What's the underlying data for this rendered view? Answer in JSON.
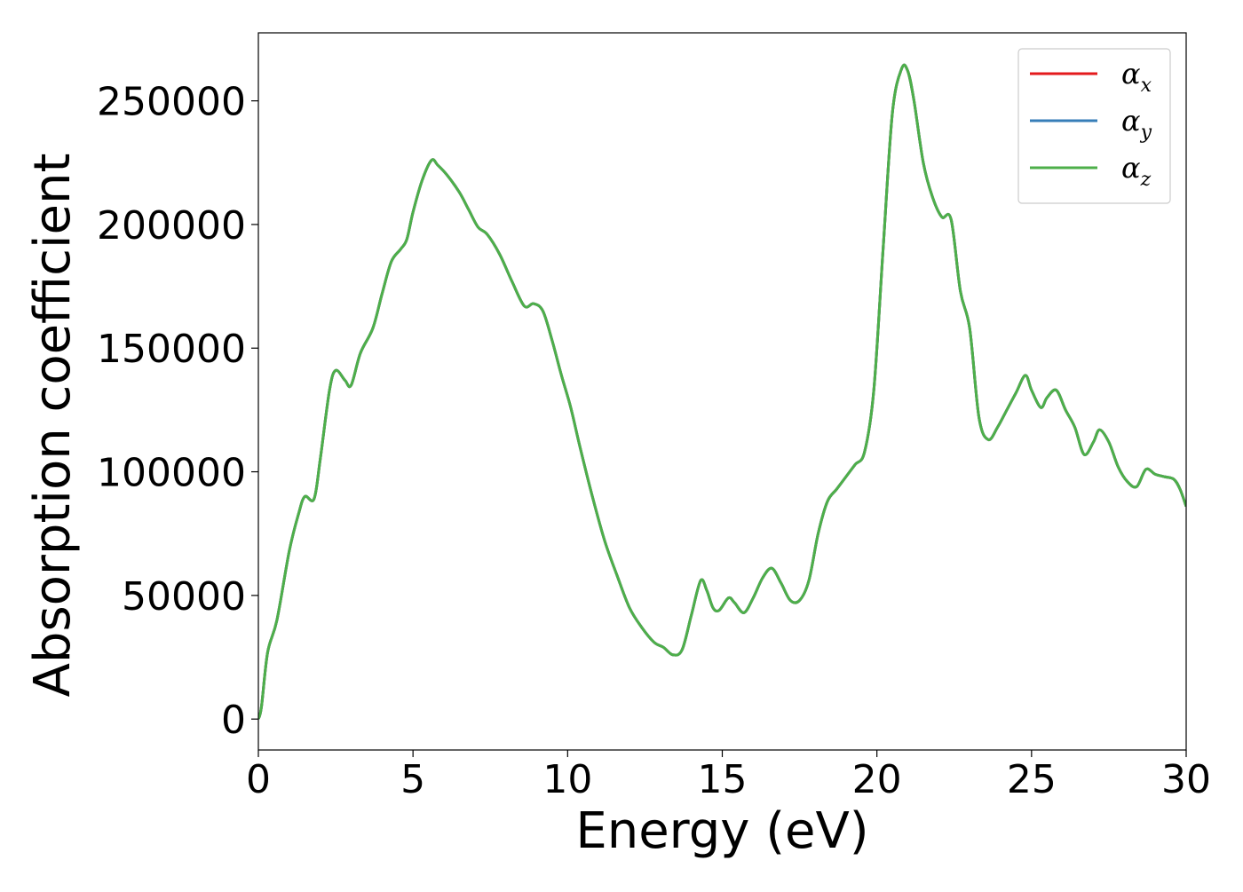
{
  "chart_data": {
    "type": "line",
    "title": "",
    "xlabel": "Energy (eV)",
    "ylabel": "Absorption coefficient",
    "xlim": [
      0,
      30
    ],
    "ylim": [
      -12500,
      277500
    ],
    "x_ticks": [
      "0",
      "5",
      "10",
      "15",
      "20",
      "25",
      "30"
    ],
    "y_ticks": [
      "0",
      "50000",
      "100000",
      "150000",
      "200000",
      "250000"
    ],
    "x_tick_values": [
      0,
      5,
      10,
      15,
      20,
      25,
      30
    ],
    "y_tick_values": [
      0,
      50000,
      100000,
      150000,
      200000,
      250000
    ],
    "grid": false,
    "legend_position": "top-right",
    "legend": [
      {
        "symbol": "α",
        "subscript": "x",
        "color": "#e41a1c"
      },
      {
        "symbol": "α",
        "subscript": "y",
        "color": "#377eb8"
      },
      {
        "symbol": "α",
        "subscript": "z",
        "color": "#4daf4a"
      }
    ],
    "x": [
      0,
      0.1,
      0.3,
      0.6,
      1.0,
      1.3,
      1.5,
      1.8,
      2.0,
      2.3,
      2.5,
      2.8,
      3.0,
      3.3,
      3.7,
      4.0,
      4.3,
      4.6,
      4.8,
      5.0,
      5.3,
      5.6,
      5.8,
      6.1,
      6.5,
      6.8,
      7.1,
      7.4,
      7.8,
      8.2,
      8.6,
      8.9,
      9.2,
      9.5,
      9.8,
      10.1,
      10.4,
      10.8,
      11.2,
      11.6,
      12.0,
      12.4,
      12.8,
      13.1,
      13.4,
      13.7,
      14.0,
      14.3,
      14.5,
      14.7,
      14.9,
      15.2,
      15.4,
      15.7,
      16.0,
      16.3,
      16.6,
      16.9,
      17.2,
      17.5,
      17.8,
      18.1,
      18.4,
      18.7,
      19.0,
      19.3,
      19.6,
      19.9,
      20.2,
      20.5,
      20.8,
      21.0,
      21.2,
      21.5,
      21.8,
      22.1,
      22.4,
      22.7,
      23.0,
      23.3,
      23.6,
      23.9,
      24.2,
      24.5,
      24.8,
      25.0,
      25.3,
      25.5,
      25.8,
      26.1,
      26.4,
      26.7,
      27.0,
      27.2,
      27.5,
      27.8,
      28.1,
      28.4,
      28.7,
      29.0,
      29.3,
      29.6,
      29.8,
      30.0
    ],
    "series": [
      {
        "name": "α_x",
        "color": "#e41a1c",
        "values": [
          0,
          5000,
          27000,
          40000,
          68000,
          83000,
          90000,
          89000,
          105000,
          133000,
          141000,
          137000,
          135000,
          148000,
          158000,
          172000,
          185000,
          190000,
          194000,
          205000,
          218000,
          226000,
          224000,
          220000,
          213000,
          206000,
          199000,
          196000,
          188000,
          177000,
          167000,
          168000,
          165000,
          153000,
          139000,
          126000,
          110000,
          90000,
          72000,
          58000,
          45000,
          37000,
          31000,
          29000,
          26000,
          28000,
          42000,
          56000,
          52000,
          45000,
          44000,
          49000,
          47000,
          43000,
          49000,
          57000,
          61000,
          55000,
          48000,
          48000,
          56000,
          75000,
          88000,
          93000,
          98000,
          103000,
          108000,
          133000,
          190000,
          245000,
          263000,
          262000,
          250000,
          225000,
          211000,
          203000,
          202000,
          173000,
          158000,
          122000,
          113000,
          118000,
          125000,
          132000,
          139000,
          133000,
          126000,
          130000,
          133000,
          125000,
          118000,
          107000,
          112000,
          117000,
          112000,
          102000,
          96000,
          94000,
          101000,
          99000,
          98000,
          97000,
          93000,
          86000
        ]
      },
      {
        "name": "α_y",
        "color": "#377eb8",
        "values": [
          0,
          5000,
          27000,
          40000,
          68000,
          83000,
          90000,
          89000,
          105000,
          133000,
          141000,
          137000,
          135000,
          148000,
          158000,
          172000,
          185000,
          190000,
          194000,
          205000,
          218000,
          226000,
          224000,
          220000,
          213000,
          206000,
          199000,
          196000,
          188000,
          177000,
          167000,
          168000,
          165000,
          153000,
          139000,
          126000,
          110000,
          90000,
          72000,
          58000,
          45000,
          37000,
          31000,
          29000,
          26000,
          28000,
          42000,
          56000,
          52000,
          45000,
          44000,
          49000,
          47000,
          43000,
          49000,
          57000,
          61000,
          55000,
          48000,
          48000,
          56000,
          75000,
          88000,
          93000,
          98000,
          103000,
          108000,
          133000,
          190000,
          245000,
          263000,
          262000,
          250000,
          225000,
          211000,
          203000,
          202000,
          173000,
          158000,
          122000,
          113000,
          118000,
          125000,
          132000,
          139000,
          133000,
          126000,
          130000,
          133000,
          125000,
          118000,
          107000,
          112000,
          117000,
          112000,
          102000,
          96000,
          94000,
          101000,
          99000,
          98000,
          97000,
          93000,
          86000
        ]
      },
      {
        "name": "α_z",
        "color": "#4daf4a",
        "values": [
          0,
          5000,
          27000,
          40000,
          68000,
          83000,
          90000,
          89000,
          105000,
          133000,
          141000,
          137000,
          135000,
          148000,
          158000,
          172000,
          185000,
          190000,
          194000,
          205000,
          218000,
          226000,
          224000,
          220000,
          213000,
          206000,
          199000,
          196000,
          188000,
          177000,
          167000,
          168000,
          165000,
          153000,
          139000,
          126000,
          110000,
          90000,
          72000,
          58000,
          45000,
          37000,
          31000,
          29000,
          26000,
          28000,
          42000,
          56000,
          52000,
          45000,
          44000,
          49000,
          47000,
          43000,
          49000,
          57000,
          61000,
          55000,
          48000,
          48000,
          56000,
          75000,
          88000,
          93000,
          98000,
          103000,
          108000,
          133000,
          190000,
          245000,
          263000,
          262000,
          250000,
          225000,
          211000,
          203000,
          202000,
          173000,
          158000,
          122000,
          113000,
          118000,
          125000,
          132000,
          139000,
          133000,
          126000,
          130000,
          133000,
          125000,
          118000,
          107000,
          112000,
          117000,
          112000,
          102000,
          96000,
          94000,
          101000,
          99000,
          98000,
          97000,
          93000,
          86000
        ]
      }
    ]
  }
}
